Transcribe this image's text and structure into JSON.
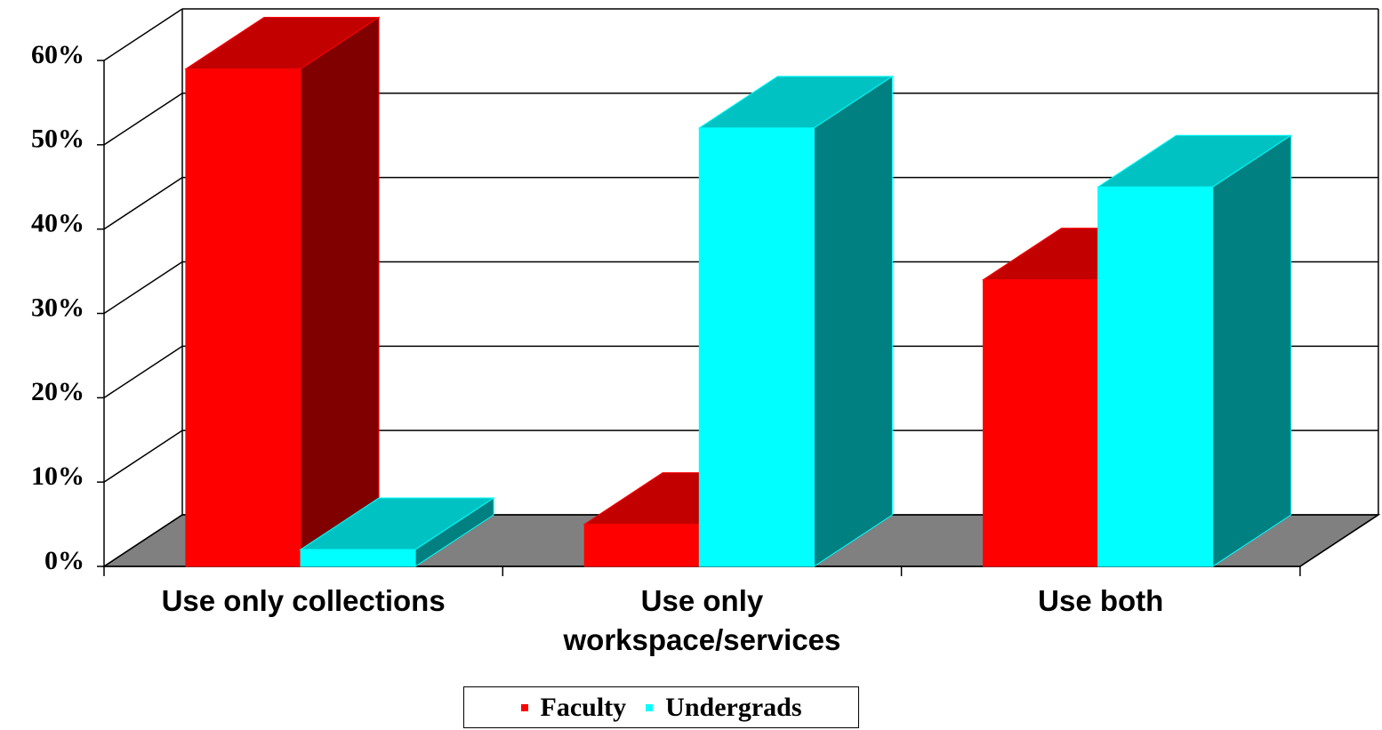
{
  "chart_data": {
    "type": "bar3d",
    "categories": [
      "Use only collections",
      "Use only workspace/services",
      "Use both"
    ],
    "series": [
      {
        "name": "Faculty",
        "color": "#ff0000",
        "values": [
          59,
          5,
          34
        ]
      },
      {
        "name": "Undergrads",
        "color": "#00ffff",
        "values": [
          2,
          52,
          45
        ]
      }
    ],
    "ylim": [
      0,
      60
    ],
    "yticks": [
      {
        "value": 0,
        "label": "0%"
      },
      {
        "value": 10,
        "label": "10%"
      },
      {
        "value": 20,
        "label": "20%"
      },
      {
        "value": 30,
        "label": "30%"
      },
      {
        "value": 40,
        "label": "40%"
      },
      {
        "value": 50,
        "label": "50%"
      },
      {
        "value": 60,
        "label": "60%"
      }
    ],
    "grid": true,
    "legend": "bottom"
  }
}
